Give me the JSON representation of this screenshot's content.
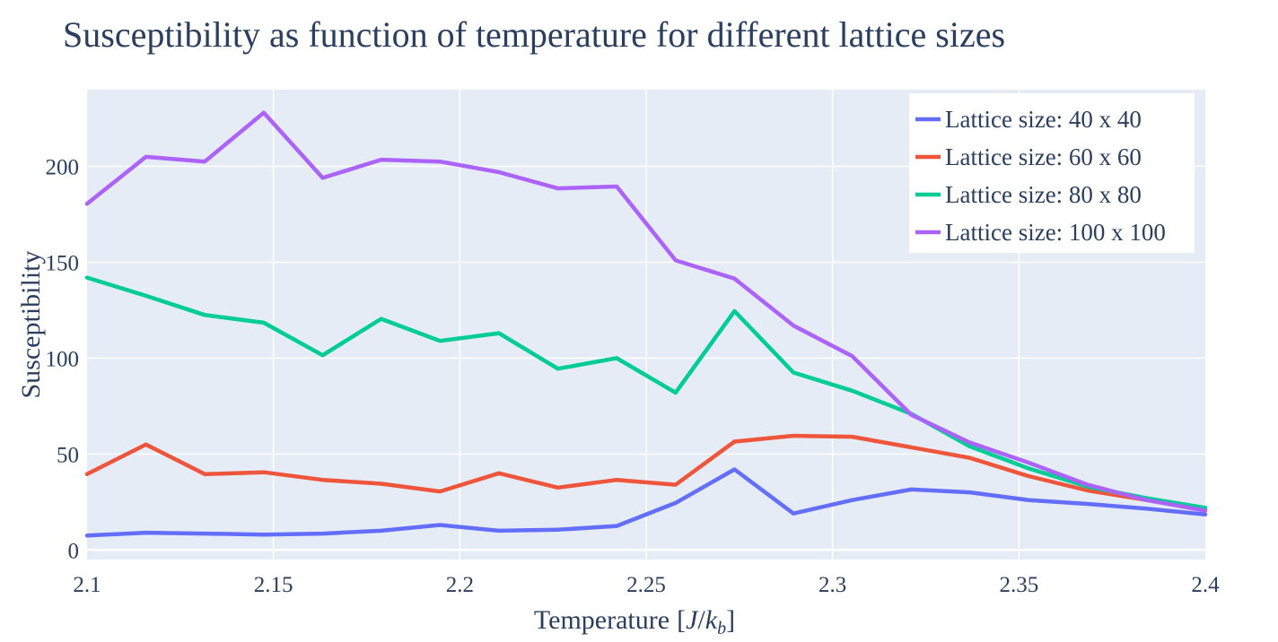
{
  "chart_data": {
    "type": "line",
    "title": "Susceptibility as function of temperature for different lattice sizes",
    "xlabel": "Temperature [J/k_b]",
    "xlabel_parts": {
      "prefix": "Temperature",
      "open": "[",
      "J": "J",
      "slash": "/",
      "k": "k",
      "sub": "b",
      "close": "]"
    },
    "ylabel": "Susceptibility",
    "xlim": [
      2.1,
      2.4
    ],
    "ylim": [
      -5,
      240
    ],
    "x_ticks": [
      2.1,
      2.15,
      2.2,
      2.25,
      2.3,
      2.35,
      2.4
    ],
    "x_tick_labels": [
      "2.1",
      "2.15",
      "2.2",
      "2.25",
      "2.3",
      "2.35",
      "2.4"
    ],
    "y_ticks": [
      0,
      50,
      100,
      150,
      200
    ],
    "y_tick_labels": [
      "0",
      "50",
      "100",
      "150",
      "200"
    ],
    "grid": true,
    "legend_position": "top-right",
    "x": [
      2.1,
      2.1158,
      2.1316,
      2.1474,
      2.1632,
      2.1789,
      2.1947,
      2.2105,
      2.2263,
      2.2421,
      2.2579,
      2.2737,
      2.2895,
      2.3053,
      2.3211,
      2.3368,
      2.3526,
      2.3684,
      2.3842,
      2.4
    ],
    "series": [
      {
        "name": "Lattice size: 40 x 40",
        "color": "#636efa",
        "values": [
          7.5,
          9,
          8.5,
          8,
          8.5,
          10,
          13,
          10,
          10.5,
          12.5,
          24.5,
          42,
          19,
          26,
          31.5,
          30,
          26,
          24,
          21.5,
          18.5
        ]
      },
      {
        "name": "Lattice size: 60 x 60",
        "color": "#ef553b",
        "values": [
          39.5,
          55,
          39.5,
          40.5,
          36.5,
          34.5,
          30.5,
          40,
          32.5,
          36.5,
          34,
          56.5,
          59.5,
          59,
          53.5,
          48,
          38.5,
          31,
          26,
          21
        ]
      },
      {
        "name": "Lattice size: 80 x 80",
        "color": "#00cc96",
        "values": [
          142,
          132.5,
          122.5,
          118.5,
          101.5,
          120.5,
          109,
          113,
          94.5,
          100,
          82,
          124.5,
          92.5,
          83,
          71,
          54,
          42.5,
          33,
          27,
          22
        ]
      },
      {
        "name": "Lattice size: 100 x 100",
        "color": "#ab63fa",
        "values": [
          180.5,
          205,
          202.5,
          228,
          194,
          203.5,
          202.5,
          197,
          188.5,
          189.5,
          151,
          141.5,
          117,
          101,
          70.5,
          56,
          45.5,
          34,
          26,
          20.5
        ]
      }
    ]
  }
}
